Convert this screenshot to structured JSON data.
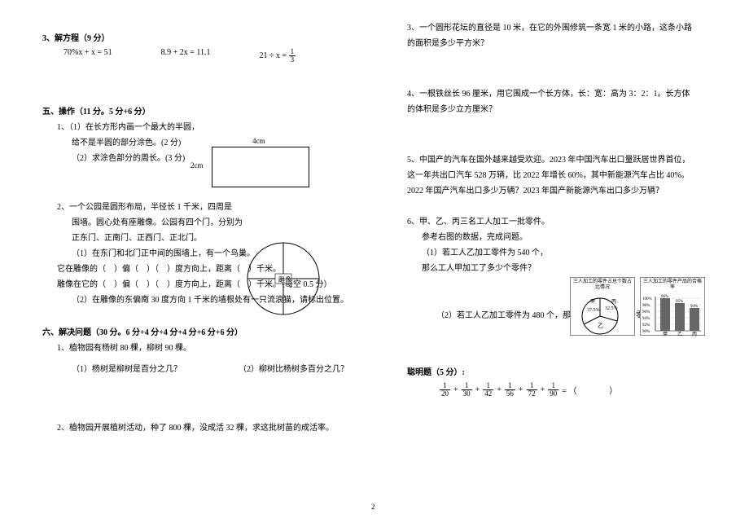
{
  "left": {
    "q3_title": "3、解方程（9 分）",
    "eq1": "70%x + x = 51",
    "eq2": "8.9 + 2x = 11.1",
    "eq3_lhs": "21 ÷ x =",
    "eq3_frac_num": "1",
    "eq3_frac_den": "3",
    "sec5_title": "五、操作（11 分。5 分+6 分）",
    "sec5_q1_l1": "1、（1）在长方形内画一个最大的半圆，",
    "sec5_q1_l2": "给不是半圆的部分涂色。(2 分)",
    "sec5_q1_l3": "（2）求涂色部分的周长。(3 分)",
    "rect_top": "4cm",
    "rect_left": "2cm",
    "sec5_q2_l1": "2、一个公园是圆形布局，半径长 1 千米，四周是",
    "sec5_q2_l2": "围墙。圆心处有座雕像。公园有四个门，分别为",
    "sec5_q2_l3": "正东门、正南门、正西门、正北门。",
    "sec5_q2_l4": "（1）在东门和北门正中间的围墙上，有一个鸟巢。",
    "sec5_q2_l5": "它在雕像的（　）偏（　）（　）度方向上，距离（　）千米。",
    "sec5_q2_l6": "雕像在它的（　）偏（　）（　）度方向上，距离（　）千米。（每空 0.5 分）",
    "sec5_q2_l7": "（2）在雕像的东偏南 30 度方向 1 千米的墙根处有一只流浪猫，请标出位置。",
    "circle_label": "雕像",
    "sec6_title": "六、解决问题（30 分。6 分+4 分+4 分+4 分+6 分+6 分）",
    "sec6_q1_l1": "1、植物园有杨树 80 棵，柳树 90 棵。",
    "sec6_q1_sub1": "（1）杨树是柳树是百分之几？",
    "sec6_q1_sub2": "（2）柳树比杨树多百分之几？",
    "sec6_q2": "2、植物园开展植树活动，种了 800 棵，没成活 32 棵，求这批树苗的成活率。"
  },
  "right": {
    "q3_l1": "3、一个圆形花坛的直径是 10 米，在它的外围修筑一条宽 1 米的小路，这条小路",
    "q3_l2": "的面积是多少平方米？",
    "q4_l1": "4、一根铁丝长 96 厘米，用它围成一个长方体，长：宽：高为 3：2：1。长方体",
    "q4_l2": "的体积是多少立方厘米？",
    "q5_l1": "5、中国产的汽车在国外越来越受欢迎。2023 年中国汽车出口量跃居世界首位，",
    "q5_l2": "这一年共出口汽车 528 万辆，比 2022 年增长 60%，其中新能源汽车占比 40%。",
    "q5_l3": "2022 年国产汽车出口多少万辆？2023 年国产新能源汽车出口多少万辆？",
    "q6_l1": "6、甲、乙、丙三名工人加工一批零件。",
    "q6_l2": "参考右图的数据，完成问题。",
    "q6_l3": "（1）若工人乙加工零件为 540 个，",
    "q6_l4": "那么工人甲加工了多少个零件？",
    "q6_sub2": "（2）若工人乙加工零件为 480 个，那么工人丙有多少个零件不合格？",
    "pie_title": "三人加工的零件占总个数占比情况",
    "bar_title": "三人加工的零件产品的合格率",
    "pie": {
      "jia": "37.5%",
      "bing": "32.5%",
      "yi": "乙",
      "jia_lbl": "甲",
      "bing_lbl": "丙"
    },
    "bar": {
      "yticks": [
        "100%",
        "98%",
        "96%",
        "94%",
        "92%",
        "90%"
      ],
      "cats": [
        "甲",
        "乙",
        "丙"
      ],
      "vals": [
        "96%",
        "95%",
        "94%"
      ],
      "heights": [
        40,
        34,
        28
      ],
      "color": "#666666"
    },
    "bonus_title": "聪明题（5 分）:",
    "bonus_fracs": [
      {
        "n": "1",
        "d": "20"
      },
      {
        "n": "1",
        "d": "30"
      },
      {
        "n": "1",
        "d": "42"
      },
      {
        "n": "1",
        "d": "56"
      },
      {
        "n": "1",
        "d": "72"
      },
      {
        "n": "1",
        "d": "90"
      }
    ],
    "bonus_eq_tail": " = （　　　　）"
  },
  "pagenum": "2"
}
